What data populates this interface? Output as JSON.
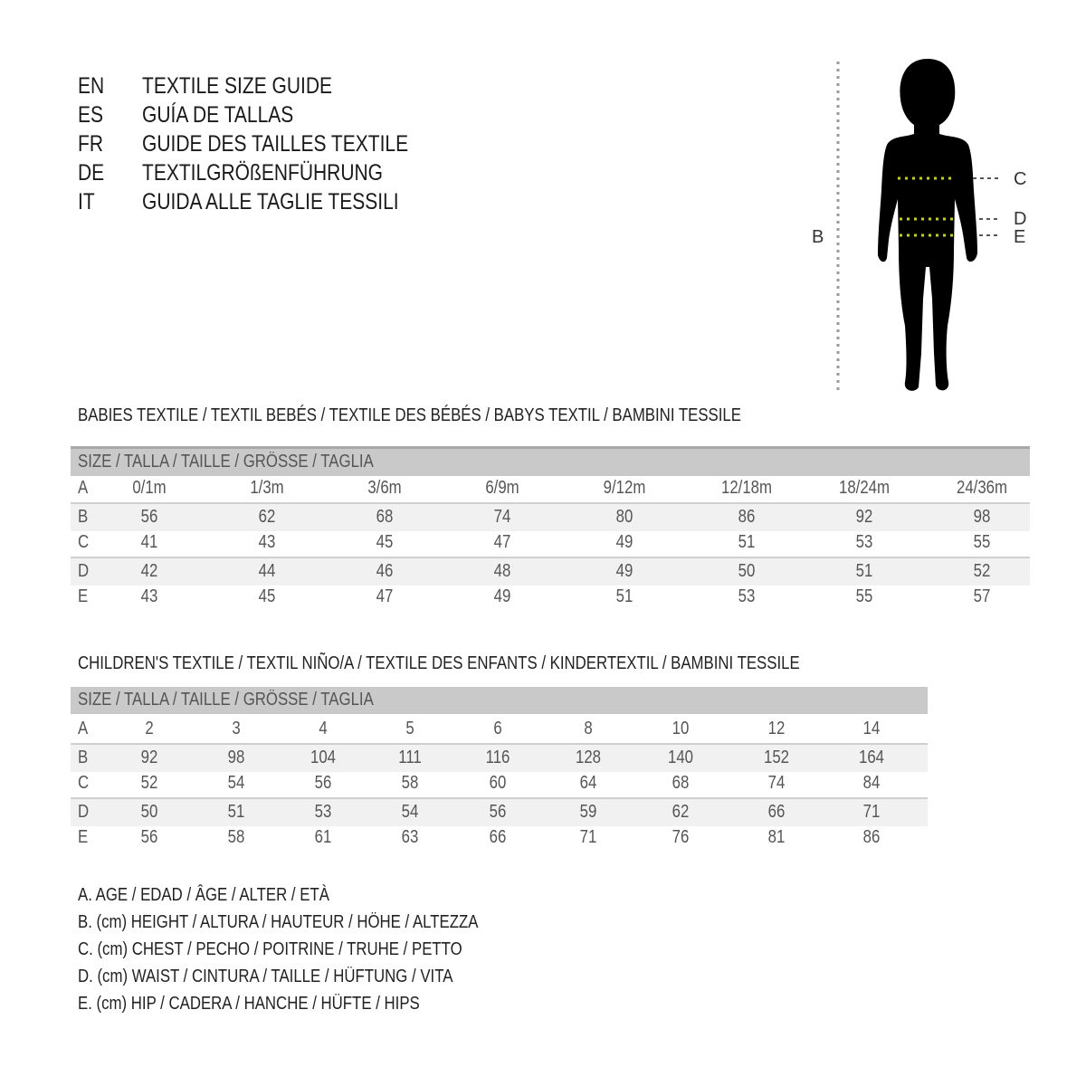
{
  "title_block": [
    {
      "lang": "EN",
      "text": "TEXTILE SIZE GUIDE"
    },
    {
      "lang": "ES",
      "text": "GUÍA DE TALLAS"
    },
    {
      "lang": "FR",
      "text": "GUIDE DES TAILLES TEXTILE"
    },
    {
      "lang": "DE",
      "text": "TEXTILGRÖßENFÜHRUNG"
    },
    {
      "lang": "IT",
      "text": "GUIDA ALLE TAGLIE TESSILI"
    }
  ],
  "figure": {
    "labels": {
      "B": "B",
      "C": "C",
      "D": "D",
      "E": "E"
    },
    "measure_line_color": "#c8d400"
  },
  "babies": {
    "title": "BABIES TEXTILE / TEXTIL BEBÉS / TEXTILE DES BÉBÉS / BABYS TEXTIL  / BAMBINI TESSILE",
    "header": "SIZE / TALLA / TAILLE / GRÖSSE / TAGLIA",
    "rows": [
      {
        "label": "A",
        "values": [
          "0/1m",
          "1/3m",
          "3/6m",
          "6/9m",
          "9/12m",
          "12/18m",
          "18/24m",
          "24/36m"
        ]
      },
      {
        "label": "B",
        "values": [
          "56",
          "62",
          "68",
          "74",
          "80",
          "86",
          "92",
          "98"
        ]
      },
      {
        "label": "C",
        "values": [
          "41",
          "43",
          "45",
          "47",
          "49",
          "51",
          "53",
          "55"
        ]
      },
      {
        "label": "D",
        "values": [
          "42",
          "44",
          "46",
          "48",
          "49",
          "50",
          "51",
          "52"
        ]
      },
      {
        "label": "E",
        "values": [
          "43",
          "45",
          "47",
          "49",
          "51",
          "53",
          "55",
          "57"
        ]
      }
    ]
  },
  "children": {
    "title": "CHILDREN'S TEXTILE / TEXTIL NIÑO/A / TEXTILE DES ENFANTS / KINDERTEXTIL / BAMBINI TESSILE",
    "header": "SIZE / TALLA / TAILLE / GRÖSSE / TAGLIA",
    "rows": [
      {
        "label": "A",
        "values": [
          "2",
          "3",
          "4",
          "5",
          "6",
          "8",
          "10",
          "12",
          "14"
        ]
      },
      {
        "label": "B",
        "values": [
          "92",
          "98",
          "104",
          "111",
          "116",
          "128",
          "140",
          "152",
          "164"
        ]
      },
      {
        "label": "C",
        "values": [
          "52",
          "54",
          "56",
          "58",
          "60",
          "64",
          "68",
          "74",
          "84"
        ]
      },
      {
        "label": "D",
        "values": [
          "50",
          "51",
          "53",
          "54",
          "56",
          "59",
          "62",
          "66",
          "71"
        ]
      },
      {
        "label": "E",
        "values": [
          "56",
          "58",
          "61",
          "63",
          "66",
          "71",
          "76",
          "81",
          "86"
        ]
      }
    ]
  },
  "legend": [
    "A. AGE / EDAD / ÂGE / ALTER / ETÀ",
    "B. (cm) HEIGHT / ALTURA / HAUTEUR / HÖHE / ALTEZZA",
    "C. (cm) CHEST / PECHO / POITRINE / TRUHE / PETTO",
    "D. (cm) WAIST / CINTURA / TAILLE / HÜFTUNG / VITA",
    "E. (cm) HIP / CADERA / HANCHE / HÜFTE / HIPS"
  ]
}
